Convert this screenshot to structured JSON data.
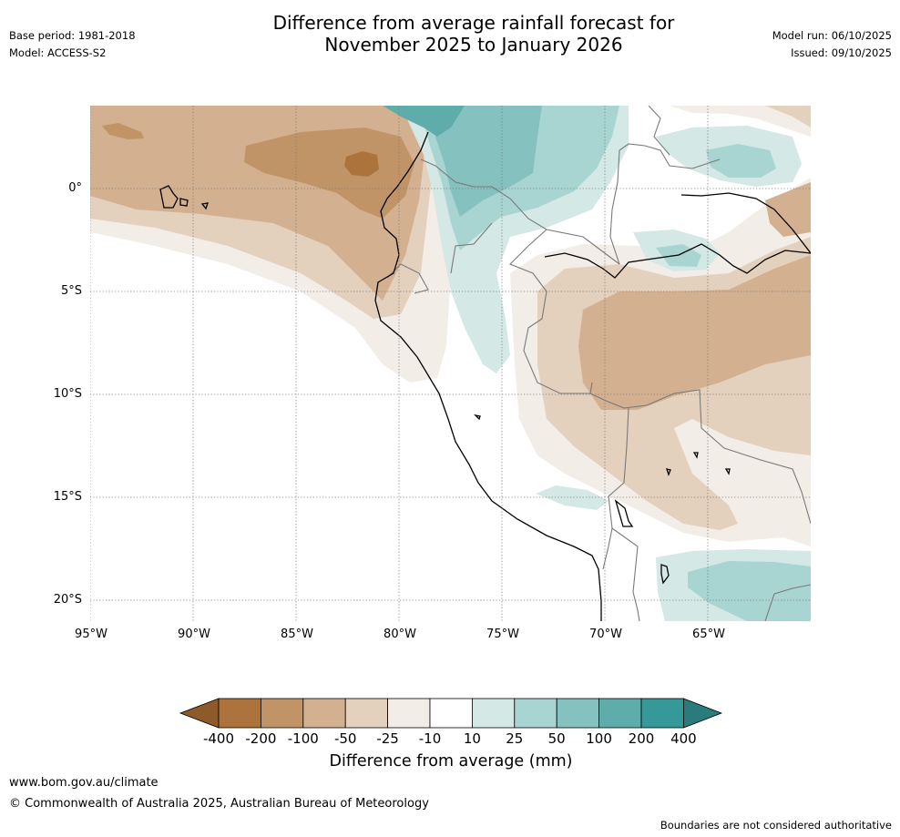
{
  "header": {
    "base_period": "Base period: 1981-2018",
    "model": "Model: ACCESS-S2",
    "title_line1": "Difference from average rainfall forecast for",
    "title_line2": "November 2025 to January 2026",
    "model_run": "Model run: 06/10/2025",
    "issued": "Issued: 09/10/2025"
  },
  "map": {
    "lat_labels": [
      "0°",
      "5°S",
      "10°S",
      "15°S",
      "20°S"
    ],
    "lon_labels": [
      "95°W",
      "90°W",
      "85°W",
      "80°W",
      "75°W",
      "70°W",
      "65°W"
    ],
    "colors": {
      "below_400": "#8e5a2a",
      "m400_m200": "#ac743c",
      "m200_m100": "#c19468",
      "m100_m50": "#d2b090",
      "m50_m25": "#e3d0bd",
      "m25_m10": "#f2ede7",
      "m10_10": "#ffffff",
      "p10_25": "#d4e8e6",
      "p25_50": "#a8d4d2",
      "p50_100": "#84c1bf",
      "p100_200": "#5fadab",
      "p200_400": "#35999a",
      "above_400": "#2a7c7c"
    }
  },
  "colorbar": {
    "ticks": [
      "-400",
      "-200",
      "-100",
      "-50",
      "-25",
      "-10",
      "10",
      "25",
      "50",
      "100",
      "200",
      "400"
    ],
    "label": "Difference from average (mm)"
  },
  "footer": {
    "url": "www.bom.gov.au/climate",
    "copyright": "© Commonwealth of Australia 2025, Australian Bureau of Meteorology",
    "disclaimer": "Boundaries are not considered authoritative"
  }
}
